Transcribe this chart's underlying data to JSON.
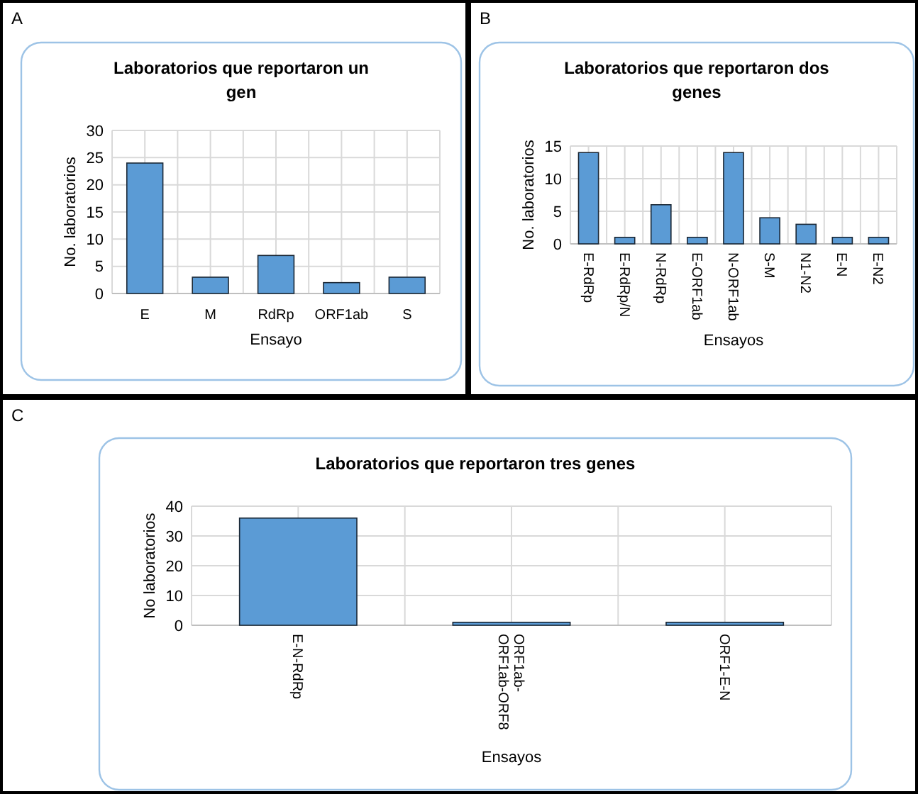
{
  "chart_data": [
    {
      "type": "bar",
      "title": "Laboratorios que reportaron un gen",
      "xlabel": "Ensayo",
      "ylabel": "No. laboratorios",
      "annotations": [
        "A"
      ],
      "categories": [
        "E",
        "M",
        "RdRp",
        "ORF1ab",
        "S"
      ],
      "values": [
        24,
        3,
        7,
        2,
        3
      ],
      "color": "#5b9bd5",
      "ylim": [
        0,
        30
      ],
      "yticks": [
        0,
        5,
        10,
        15,
        20,
        25,
        30
      ],
      "grid": true
    },
    {
      "type": "bar",
      "title": "Laboratorios que reportaron dos genes",
      "xlabel": "Ensayos",
      "ylabel": "No. laboratorios",
      "annotations": [
        "B"
      ],
      "categories": [
        "E-RdRp",
        "E-RdRp/N",
        "N-RdRp",
        "E-ORF1ab",
        "N-ORF1ab",
        "S-M",
        "N1-N2",
        "E-N",
        "E-N2"
      ],
      "values": [
        14,
        1,
        6,
        1,
        14,
        4,
        3,
        1,
        1
      ],
      "color": "#5b9bd5",
      "ylim": [
        0,
        15
      ],
      "yticks": [
        0,
        5,
        10,
        15
      ],
      "grid": true
    },
    {
      "type": "bar",
      "title": "Laboratorios que reportaron tres genes",
      "xlabel": "Ensayos",
      "ylabel": "No laboratorios",
      "annotations": [
        "C"
      ],
      "categories": [
        "E-N-RdRp",
        "ORF1ab-ORF1ab-ORF8",
        "ORF1-E-N"
      ],
      "values": [
        36,
        1,
        1
      ],
      "color": "#5b9bd5",
      "ylim": [
        0,
        40
      ],
      "yticks": [
        0,
        10,
        20,
        30,
        40
      ],
      "grid": true
    }
  ]
}
